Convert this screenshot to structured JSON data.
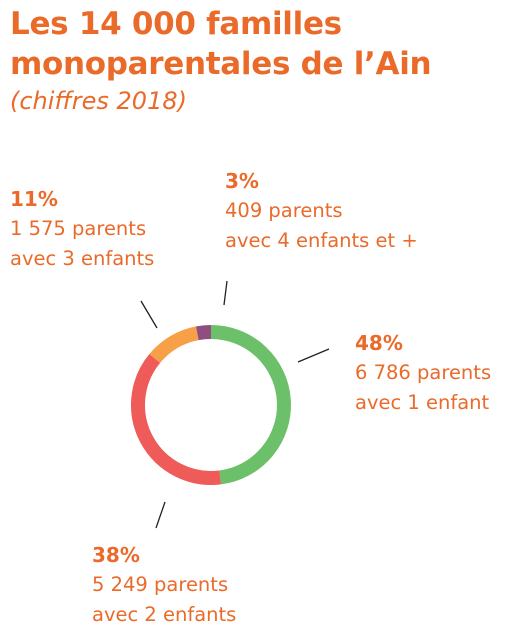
{
  "header": {
    "title_line1": "Les 14 000 familles",
    "title_line2": "monoparentales de l’Ain",
    "subtitle": "(chiffres 2018)"
  },
  "colors": {
    "text": "#ea6a2a",
    "leader": "#222222"
  },
  "chart_data": {
    "type": "pie",
    "donut": true,
    "title": "Les 14 000 familles monoparentales de l’Ain",
    "subtitle": "(chiffres 2018)",
    "total": 14000,
    "slices": [
      {
        "key": "one",
        "percent": 48,
        "percent_label": "48%",
        "parents": 6786,
        "line1": "6 786 parents",
        "line2": "avec 1 enfant",
        "color": "#6cc069"
      },
      {
        "key": "two",
        "percent": 38,
        "percent_label": "38%",
        "parents": 5249,
        "line1": "5 249 parents",
        "line2": "avec 2 enfants",
        "color": "#ef5b58"
      },
      {
        "key": "three",
        "percent": 11,
        "percent_label": "11%",
        "parents": 1575,
        "line1": "1 575 parents",
        "line2": "avec 3 enfants",
        "color": "#f8a048"
      },
      {
        "key": "four",
        "percent": 3,
        "percent_label": "3%",
        "parents": 409,
        "line1": "409 parents",
        "line2": "avec 4 enfants et +",
        "color": "#8f4f7e"
      }
    ]
  }
}
